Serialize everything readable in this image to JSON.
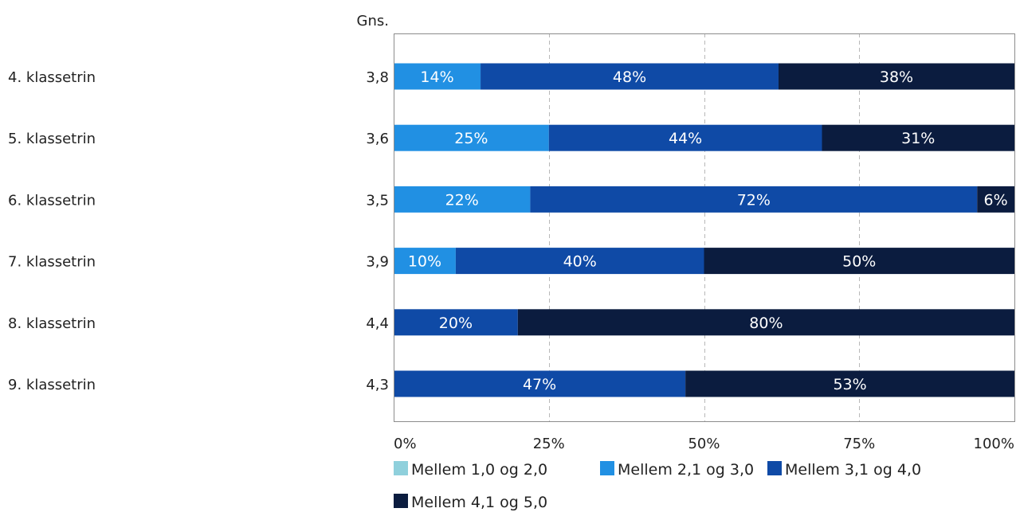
{
  "chart_data": {
    "type": "bar",
    "orientation": "horizontal",
    "stacked": "percent",
    "average_column_header": "Gns.",
    "categories": [
      "4. klassetrin",
      "5. klassetrin",
      "6. klassetrin",
      "7. klassetrin",
      "8. klassetrin",
      "9. klassetrin"
    ],
    "averages": [
      "3,8",
      "3,6",
      "3,5",
      "3,9",
      "4,4",
      "4,3"
    ],
    "series": [
      {
        "name": "Mellem 1,0 og 2,0",
        "color": "#8fd0dc",
        "values": [
          0,
          0,
          0,
          0,
          0,
          0
        ]
      },
      {
        "name": "Mellem 2,1 og 3,0",
        "color": "#2190e3",
        "values": [
          14,
          25,
          22,
          10,
          0,
          0
        ]
      },
      {
        "name": "Mellem 3,1 og 4,0",
        "color": "#0f4aa6",
        "values": [
          48,
          44,
          72,
          40,
          20,
          47
        ]
      },
      {
        "name": "Mellem 4,1 og 5,0",
        "color": "#0b1c3f",
        "values": [
          38,
          31,
          6,
          50,
          80,
          53
        ]
      }
    ],
    "value_labels": [
      [
        "",
        "14%",
        "48%",
        "38%"
      ],
      [
        "",
        "25%",
        "44%",
        "31%"
      ],
      [
        "",
        "22%",
        "72%",
        "6%"
      ],
      [
        "",
        "10%",
        "40%",
        "50%"
      ],
      [
        "",
        "",
        "20%",
        "80%"
      ],
      [
        "",
        "",
        "47%",
        "53%"
      ]
    ],
    "x_ticks": [
      "0%",
      "25%",
      "50%",
      "75%",
      "100%"
    ],
    "xlim": [
      0,
      100
    ],
    "grid": "vertical dashed",
    "legend_position": "bottom"
  }
}
